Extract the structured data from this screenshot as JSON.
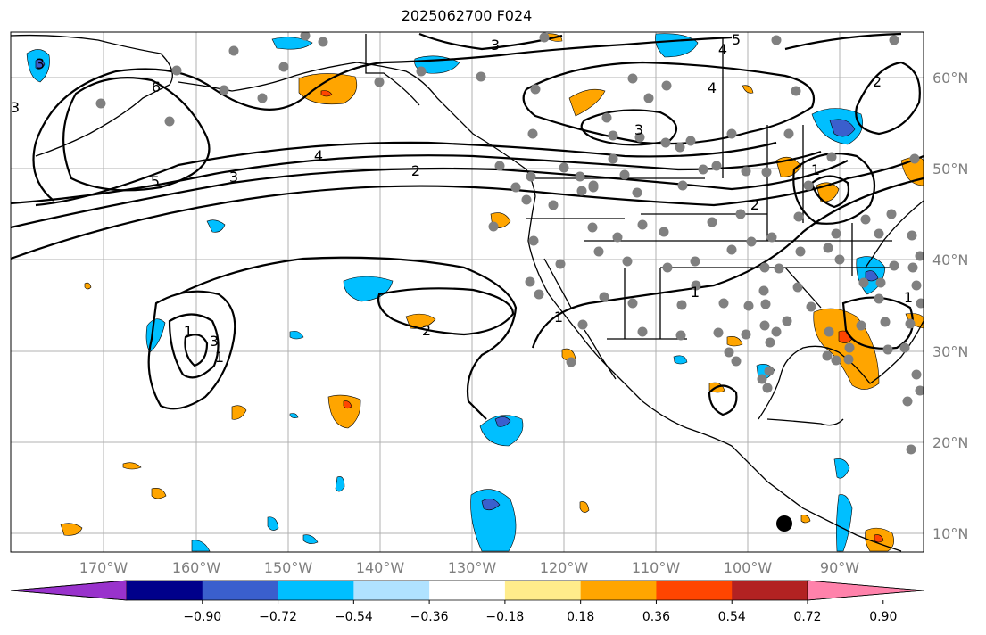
{
  "title": "2025062700 F024",
  "map": {
    "lat_labels": [
      "60°N",
      "50°N",
      "40°N",
      "30°N",
      "20°N",
      "10°N"
    ],
    "lon_labels": [
      "170°W",
      "160°W",
      "150°W",
      "140°W",
      "130°W",
      "120°W",
      "110°W",
      "100°W",
      "90°W"
    ],
    "contour_labels": [
      "3",
      "5",
      "4",
      "4",
      "6",
      "3",
      "3",
      "4",
      "5",
      "2",
      "2",
      "1",
      "3",
      "3",
      "1",
      "1",
      "1",
      "1",
      "1",
      "2",
      "2",
      "3"
    ],
    "marker_colors": {
      "station": "#808080",
      "big_dot": "#000000"
    }
  },
  "colorbar": {
    "tick_labels": [
      "−0.90",
      "−0.72",
      "−0.54",
      "−0.36",
      "−0.18",
      "0.18",
      "0.36",
      "0.54",
      "0.72",
      "0.90"
    ],
    "colors": [
      "#9932cc",
      "#00008b",
      "#3a5fcd",
      "#00bfff",
      "#b0e2ff",
      "#ffffff",
      "#ffec8b",
      "#ffa500",
      "#ff4500",
      "#b22222",
      "#ff82ab"
    ]
  }
}
